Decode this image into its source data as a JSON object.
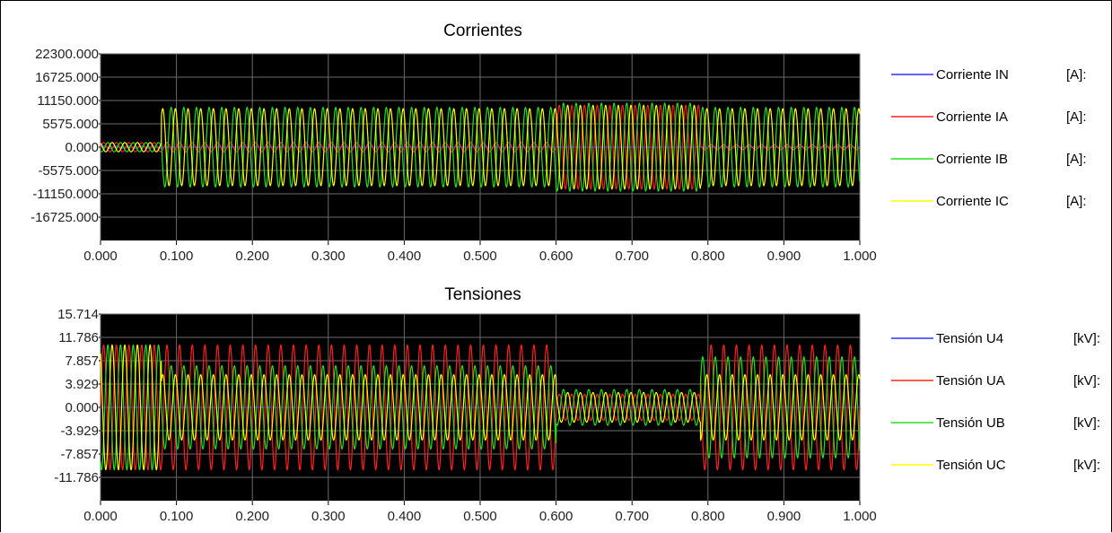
{
  "chart_data": [
    {
      "type": "line",
      "title": "Corrientes",
      "xlabel": "",
      "ylabel": "",
      "xlim": [
        0,
        1
      ],
      "ylim": [
        -22300,
        22300
      ],
      "grid": true,
      "background": "#000000",
      "legend_position": "right",
      "x_ticks": [
        "0.000",
        "0.100",
        "0.200",
        "0.300",
        "0.400",
        "0.500",
        "0.600",
        "0.700",
        "0.800",
        "0.900",
        "1.000"
      ],
      "y_ticks": [
        "22300.000",
        "16725.000",
        "11150.000",
        "5575.000",
        "0.000",
        "-5575.000",
        "-11150.000",
        "-16725.000"
      ],
      "frequency_hz": 60,
      "series": [
        {
          "name": "Corriente IN",
          "unit": "[A]:",
          "color": "#3030ff",
          "phase_deg": 0,
          "segments": [
            {
              "t0": 0.0,
              "t1": 0.08,
              "amp": 300
            },
            {
              "t0": 0.08,
              "t1": 1.0,
              "amp": 0
            }
          ]
        },
        {
          "name": "Corriente IA",
          "unit": "[A]:",
          "color": "#ff2020",
          "phase_deg": 0,
          "segments": [
            {
              "t0": 0.0,
              "t1": 0.08,
              "amp": 1100
            },
            {
              "t0": 0.08,
              "t1": 0.6,
              "amp": 1100
            },
            {
              "t0": 0.6,
              "t1": 0.79,
              "amp": 10000
            },
            {
              "t0": 0.79,
              "t1": 1.0,
              "amp": 600
            }
          ]
        },
        {
          "name": "Corriente IB",
          "unit": "[A]:",
          "color": "#20e020",
          "phase_deg": -120,
          "segments": [
            {
              "t0": 0.0,
              "t1": 0.08,
              "amp": 1100
            },
            {
              "t0": 0.08,
              "t1": 0.6,
              "amp": 9500
            },
            {
              "t0": 0.6,
              "t1": 0.79,
              "amp": 10500
            },
            {
              "t0": 0.79,
              "t1": 1.0,
              "amp": 9500
            }
          ]
        },
        {
          "name": "Corriente IC",
          "unit": "[A]:",
          "color": "#ffff00",
          "phase_deg": 120,
          "segments": [
            {
              "t0": 0.0,
              "t1": 0.08,
              "amp": 1100
            },
            {
              "t0": 0.08,
              "t1": 0.6,
              "amp": 9200
            },
            {
              "t0": 0.6,
              "t1": 0.79,
              "amp": 10000
            },
            {
              "t0": 0.79,
              "t1": 1.0,
              "amp": 9200
            }
          ]
        }
      ]
    },
    {
      "type": "line",
      "title": "Tensiones",
      "xlabel": "",
      "ylabel": "",
      "xlim": [
        0,
        1
      ],
      "ylim": [
        -15.714,
        15.714
      ],
      "grid": true,
      "background": "#000000",
      "legend_position": "right",
      "x_ticks": [
        "0.000",
        "0.100",
        "0.200",
        "0.300",
        "0.400",
        "0.500",
        "0.600",
        "0.700",
        "0.800",
        "0.900",
        "1.000"
      ],
      "y_ticks": [
        "15.714",
        "11.786",
        "7.857",
        "3.929",
        "0.000",
        "-3.929",
        "-7.857",
        "-11.786"
      ],
      "frequency_hz": 60,
      "series": [
        {
          "name": "Tensión U4",
          "unit": "[kV]:",
          "color": "#3030ff",
          "phase_deg": 0,
          "segments": [
            {
              "t0": 0.0,
              "t1": 1.0,
              "amp": 0
            }
          ]
        },
        {
          "name": "Tensión UA",
          "unit": "[kV]:",
          "color": "#ff2020",
          "phase_deg": 0,
          "segments": [
            {
              "t0": 0.0,
              "t1": 0.6,
              "amp": 10.5
            },
            {
              "t0": 0.6,
              "t1": 0.79,
              "amp": 2.2
            },
            {
              "t0": 0.79,
              "t1": 1.0,
              "amp": 10.5
            }
          ]
        },
        {
          "name": "Tensión UB",
          "unit": "[kV]:",
          "color": "#20e020",
          "phase_deg": -120,
          "segments": [
            {
              "t0": 0.0,
              "t1": 0.08,
              "amp": 10.5
            },
            {
              "t0": 0.08,
              "t1": 0.6,
              "amp": 7.0
            },
            {
              "t0": 0.6,
              "t1": 0.79,
              "amp": 3.0
            },
            {
              "t0": 0.79,
              "t1": 1.0,
              "amp": 8.5
            }
          ]
        },
        {
          "name": "Tensión UC",
          "unit": "[kV]:",
          "color": "#ffff00",
          "phase_deg": 120,
          "segments": [
            {
              "t0": 0.0,
              "t1": 0.08,
              "amp": 10.5
            },
            {
              "t0": 0.08,
              "t1": 0.6,
              "amp": 5.5
            },
            {
              "t0": 0.6,
              "t1": 0.79,
              "amp": 2.5
            },
            {
              "t0": 0.79,
              "t1": 1.0,
              "amp": 5.5
            }
          ]
        }
      ]
    }
  ]
}
